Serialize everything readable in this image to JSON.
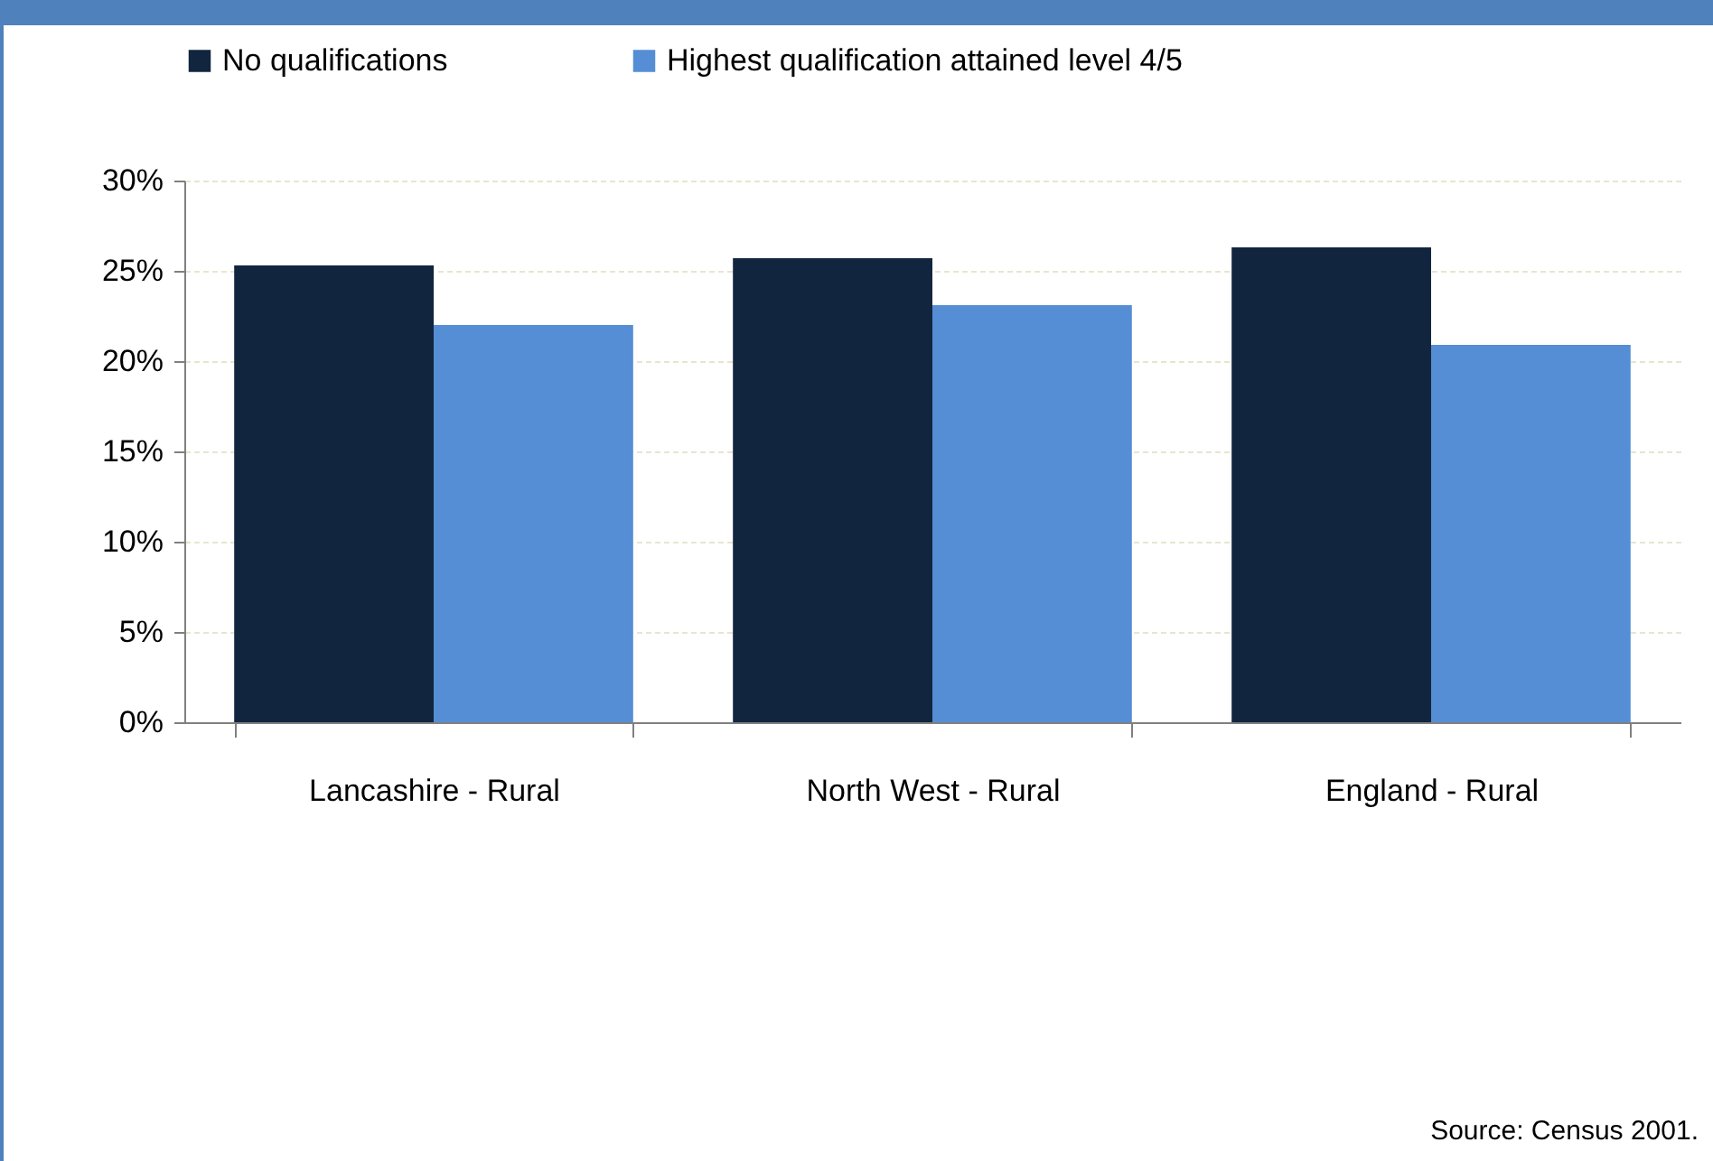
{
  "chart_data": {
    "type": "bar",
    "categories": [
      "Lancashire - Rural",
      "North West - Rural",
      "England - Rural"
    ],
    "series": [
      {
        "name": "No qualifications",
        "color": "#12253f",
        "values": [
          25.3,
          25.7,
          26.3
        ]
      },
      {
        "name": "Highest qualification attained level 4/5",
        "color": "#558ed5",
        "values": [
          22.0,
          23.1,
          20.9
        ]
      }
    ],
    "ylim": [
      0,
      30
    ],
    "yticks": [
      {
        "value": 0,
        "label": "0%"
      },
      {
        "value": 5,
        "label": "5%"
      },
      {
        "value": 10,
        "label": "10%"
      },
      {
        "value": 15,
        "label": "15%"
      },
      {
        "value": 20,
        "label": "20%"
      },
      {
        "value": 25,
        "label": "25%"
      },
      {
        "value": 30,
        "label": "30%"
      }
    ],
    "grid": "y",
    "legend": "top",
    "annotations": [
      "Source: Census 2001."
    ]
  }
}
